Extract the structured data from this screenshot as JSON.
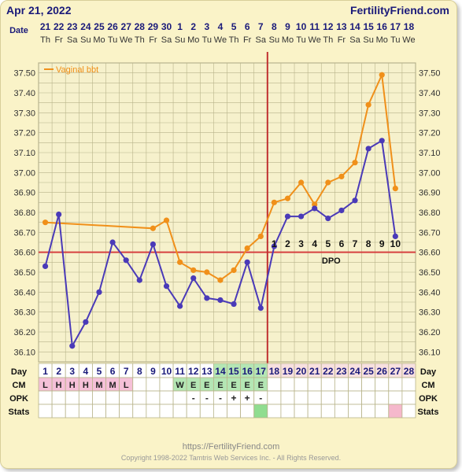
{
  "header": {
    "date": "Apr 21, 2022",
    "brand": "FertilityFriend.com"
  },
  "footer": {
    "url": "https://FertilityFriend.com",
    "copyright": "Copyright 1998-2022 Tamtris Web Services Inc. - All Rights Reserved."
  },
  "row_labels": {
    "date": "Date",
    "day": "Day",
    "cm": "CM",
    "opk": "OPK",
    "stats": "Stats"
  },
  "dpo_label": "DPO",
  "colors": {
    "series_bbt": "#f0901a",
    "series_temp": "#4a3ab8",
    "coverline": "#d64040",
    "ovulation_line": "#c03030",
    "grid": "#b8b48a",
    "period_cell": "#f5c0d8",
    "fertile_cell": "#b4e6b4",
    "luteal_cell": "#f8e0e0",
    "stats_pink": "#f5b8cc",
    "stats_green": "#90dd90"
  },
  "chart_data": {
    "type": "line",
    "ylim": [
      36.05,
      37.55
    ],
    "yticks": [
      "37.50",
      "37.40",
      "37.30",
      "37.20",
      "37.10",
      "37.00",
      "36.90",
      "36.80",
      "36.70",
      "36.60",
      "36.50",
      "36.40",
      "36.30",
      "36.20",
      "36.10"
    ],
    "dates": [
      "21",
      "22",
      "23",
      "24",
      "25",
      "26",
      "27",
      "28",
      "29",
      "30",
      "1",
      "2",
      "3",
      "4",
      "5",
      "6",
      "7",
      "8",
      "9",
      "10",
      "11",
      "12",
      "13",
      "14",
      "15",
      "16",
      "17",
      "18"
    ],
    "weekdays": [
      "Th",
      "Fr",
      "Sa",
      "Su",
      "Mo",
      "Tu",
      "We",
      "Th",
      "Fr",
      "Sa",
      "Su",
      "Mo",
      "Tu",
      "We",
      "Th",
      "Fr",
      "Sa",
      "Su",
      "Mo",
      "Tu",
      "We",
      "Th",
      "Fr",
      "Sa",
      "Su",
      "Mo",
      "Tu",
      "We"
    ],
    "days": [
      "1",
      "2",
      "3",
      "4",
      "5",
      "6",
      "7",
      "8",
      "9",
      "10",
      "11",
      "12",
      "13",
      "14",
      "15",
      "16",
      "17",
      "18",
      "19",
      "20",
      "21",
      "22",
      "23",
      "24",
      "25",
      "26",
      "27",
      "28"
    ],
    "coverline": 36.6,
    "ovulation_day": 17,
    "series": [
      {
        "name": "Vaginal bbt",
        "values": [
          {
            "day": 1,
            "temp": 36.75
          },
          {
            "day": 9,
            "temp": 36.72
          },
          {
            "day": 10,
            "temp": 36.76
          },
          {
            "day": 11,
            "temp": 36.55
          },
          {
            "day": 12,
            "temp": 36.51
          },
          {
            "day": 13,
            "temp": 36.5
          },
          {
            "day": 14,
            "temp": 36.46
          },
          {
            "day": 15,
            "temp": 36.51
          },
          {
            "day": 16,
            "temp": 36.62
          },
          {
            "day": 17,
            "temp": 36.68
          },
          {
            "day": 18,
            "temp": 36.85
          },
          {
            "day": 19,
            "temp": 36.87
          },
          {
            "day": 20,
            "temp": 36.95
          },
          {
            "day": 21,
            "temp": 36.84
          },
          {
            "day": 22,
            "temp": 36.95
          },
          {
            "day": 23,
            "temp": 36.98
          },
          {
            "day": 24,
            "temp": 37.05
          },
          {
            "day": 25,
            "temp": 37.34
          },
          {
            "day": 26,
            "temp": 37.49
          },
          {
            "day": 27,
            "temp": 36.92
          }
        ]
      },
      {
        "values": [
          {
            "day": 1,
            "temp": 36.53
          },
          {
            "day": 2,
            "temp": 36.79
          },
          {
            "day": 3,
            "temp": 36.13
          },
          {
            "day": 4,
            "temp": 36.25
          },
          {
            "day": 5,
            "temp": 36.4
          },
          {
            "day": 6,
            "temp": 36.65
          },
          {
            "day": 7,
            "temp": 36.56
          },
          {
            "day": 8,
            "temp": 36.46
          },
          {
            "day": 9,
            "temp": 36.64
          },
          {
            "day": 10,
            "temp": 36.43
          },
          {
            "day": 11,
            "temp": 36.33
          },
          {
            "day": 12,
            "temp": 36.47
          },
          {
            "day": 13,
            "temp": 36.37
          },
          {
            "day": 14,
            "temp": 36.36
          },
          {
            "day": 15,
            "temp": 36.34
          },
          {
            "day": 16,
            "temp": 36.55
          },
          {
            "day": 17,
            "temp": 36.32
          },
          {
            "day": 18,
            "temp": 36.63
          },
          {
            "day": 19,
            "temp": 36.78
          },
          {
            "day": 20,
            "temp": 36.78
          },
          {
            "day": 21,
            "temp": 36.82
          },
          {
            "day": 22,
            "temp": 36.77
          },
          {
            "day": 23,
            "temp": 36.81
          },
          {
            "day": 24,
            "temp": 36.86
          },
          {
            "day": 25,
            "temp": 37.12
          },
          {
            "day": 26,
            "temp": 37.16
          },
          {
            "day": 27,
            "temp": 36.68
          }
        ]
      }
    ],
    "dpo_numbers": [
      "1",
      "2",
      "3",
      "4",
      "5",
      "6",
      "7",
      "8",
      "9",
      "10"
    ],
    "cm": [
      "L",
      "H",
      "H",
      "H",
      "M",
      "M",
      "L",
      "",
      "",
      "",
      "W",
      "E",
      "E",
      "E",
      "E",
      "E",
      "E",
      "",
      "",
      "",
      "",
      "",
      "",
      "",
      "",
      "",
      "",
      ""
    ],
    "opk": [
      "",
      "",
      "",
      "",
      "",
      "",
      "",
      "",
      "",
      "",
      "",
      "-",
      "-",
      "-",
      "+",
      "+",
      "-",
      "",
      "",
      "",
      "",
      "",
      "",
      "",
      "",
      "",
      "",
      ""
    ],
    "legend_position": "top-left"
  }
}
